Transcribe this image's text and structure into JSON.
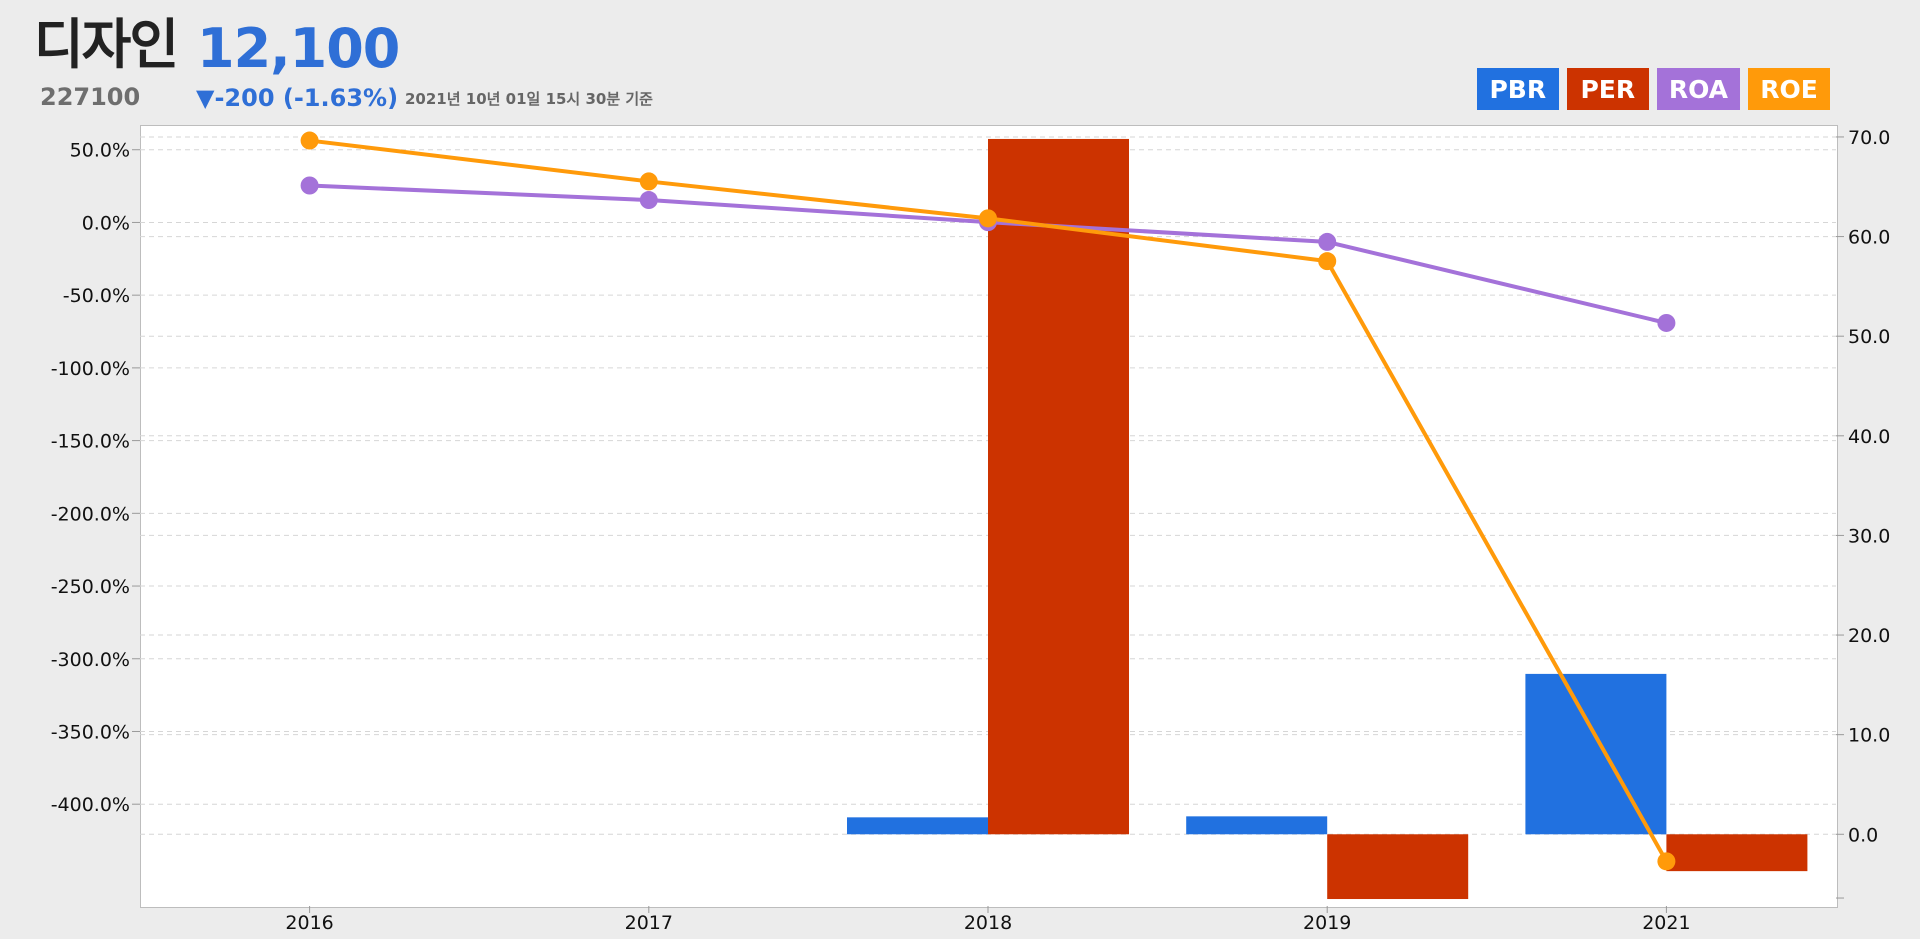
{
  "header": {
    "name": "디자인",
    "price": "12,100",
    "code": "227100",
    "change": "▼-200 (-1.63%)",
    "asof": "2021년 10년 01일 15시 30분 기준"
  },
  "colors": {
    "PBR": "#2171e0",
    "PER": "#cc3300",
    "ROA": "#a472d9",
    "ROE": "#ff9a0a"
  },
  "chart_data": {
    "type": "bar+line",
    "categories": [
      "2016",
      "2017",
      "2018",
      "2019",
      "2021"
    ],
    "series": [
      {
        "name": "PBR",
        "type": "bar",
        "axis": "right",
        "values": [
          null,
          null,
          1.7,
          1.8,
          16.1
        ]
      },
      {
        "name": "PER",
        "type": "bar",
        "axis": "right",
        "values": [
          null,
          null,
          69.8,
          -6.5,
          -3.7
        ]
      },
      {
        "name": "ROA",
        "type": "line",
        "axis": "left",
        "values": [
          25.4,
          15.4,
          0.2,
          -13.4,
          -69.1
        ]
      },
      {
        "name": "ROE",
        "type": "line",
        "axis": "left",
        "values": [
          56.3,
          28.2,
          2.8,
          -26.6,
          -439.3
        ]
      }
    ],
    "left_axis": {
      "ylim": [
        -470,
        67
      ],
      "ticks": [
        50,
        0,
        -50,
        -100,
        -150,
        -200,
        -250,
        -300,
        -350,
        -400
      ],
      "tick_labels": [
        "50.0%",
        "0.0%",
        "-50.0%",
        "-100.0%",
        "-150.0%",
        "-200.0%",
        "-250.0%",
        "-300.0%",
        "-350.0%",
        "-400.0%"
      ]
    },
    "right_axis": {
      "ylim": [
        -7.2,
        71.2
      ],
      "ticks": [
        70,
        60,
        50,
        40,
        30,
        20,
        10,
        0
      ],
      "tick_labels": [
        "70.0",
        "60.0",
        "50.0",
        "40.0",
        "30.0",
        "20.0",
        "10.0",
        "0.0"
      ]
    },
    "legend": [
      "PBR",
      "PER",
      "ROA",
      "ROE"
    ],
    "legend_position": "top-right",
    "grid": true
  }
}
